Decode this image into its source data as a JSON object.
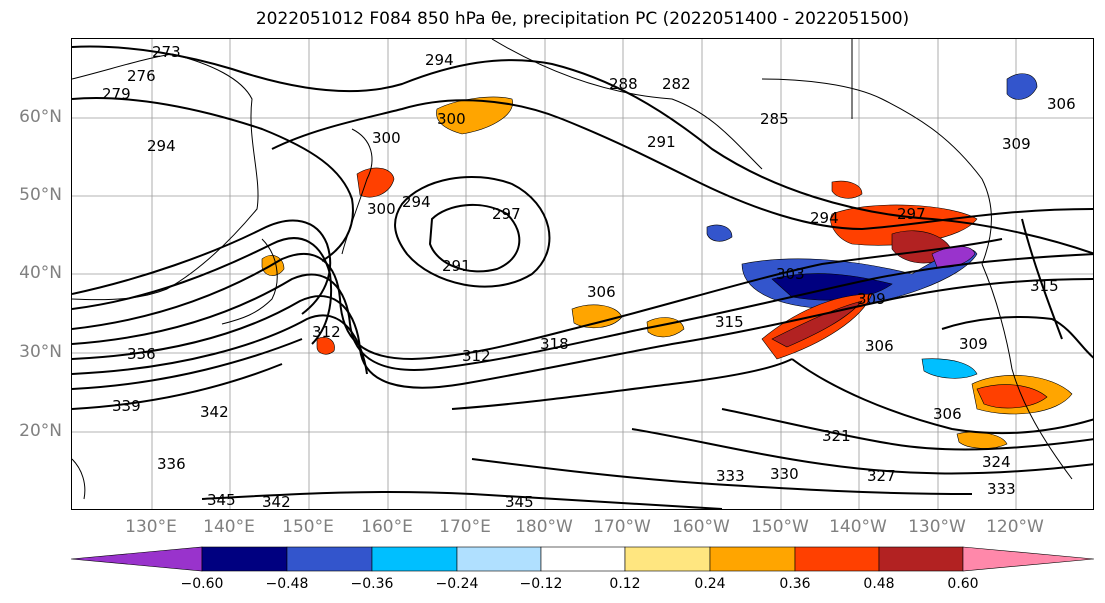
{
  "title": "2022051012 F084 850 hPa θe, precipitation PC (2022051400 - 2022051500)",
  "lat_labels": [
    "60°N",
    "50°N",
    "40°N",
    "30°N",
    "20°N"
  ],
  "lon_labels": [
    "130°E",
    "140°E",
    "150°E",
    "160°E",
    "170°E",
    "180°W",
    "170°W",
    "160°W",
    "150°W",
    "140°W",
    "130°W",
    "120°W"
  ],
  "contour_labels": [
    "273",
    "294",
    "279",
    "276",
    "282",
    "285",
    "288",
    "291",
    "294",
    "300",
    "300",
    "294",
    "297",
    "291",
    "300",
    "294",
    "297",
    "303",
    "306",
    "309",
    "312",
    "312",
    "315",
    "318",
    "306",
    "309",
    "315",
    "306",
    "309",
    "306",
    "321",
    "324",
    "327",
    "330",
    "333",
    "336",
    "339",
    "342",
    "342",
    "345",
    "345",
    "336",
    "333"
  ],
  "colorbar": {
    "colors": [
      "#9933cc",
      "#000080",
      "#3355cc",
      "#00bfff",
      "#b0e0ff",
      "#ffffff",
      "#ffe680",
      "#ffa500",
      "#ff4000",
      "#b22222",
      "#ff88aa"
    ],
    "tick_labels": [
      "−0.60",
      "−0.48",
      "−0.36",
      "−0.24",
      "−0.12",
      "0.12",
      "0.24",
      "0.36",
      "0.48",
      "0.60"
    ]
  }
}
